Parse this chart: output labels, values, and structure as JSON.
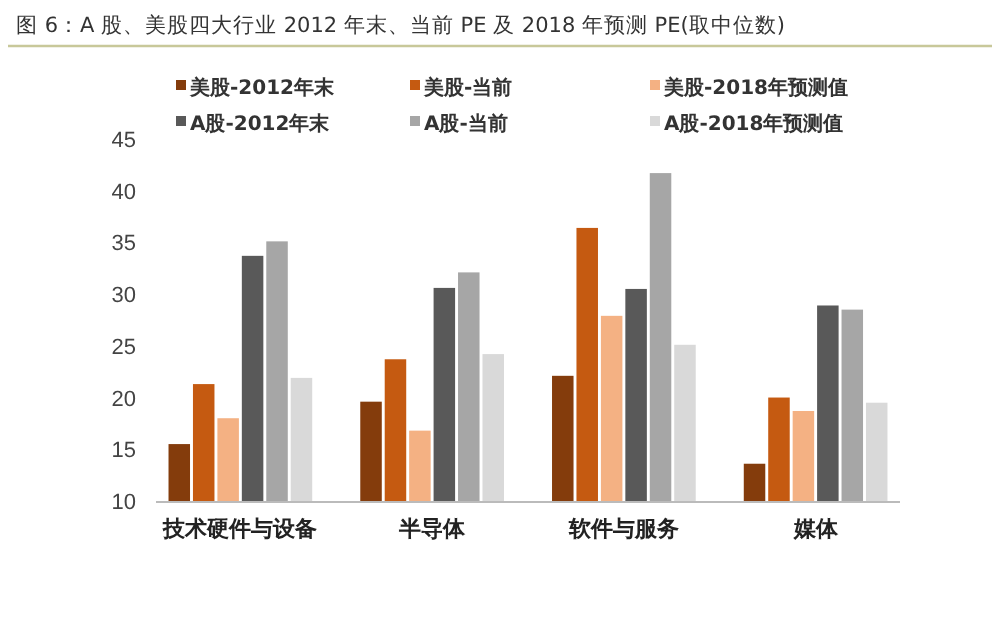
{
  "chart_data": {
    "type": "bar",
    "title": "图 6：A 股、美股四大行业 2012 年末、当前 PE 及 2018 年预测 PE(取中位数)",
    "categories": [
      "技术硬件与设备",
      "半导体",
      "软件与服务",
      "媒体"
    ],
    "series": [
      {
        "name": "美股-2012年末",
        "color": "#843c0c",
        "values": [
          15.6,
          19.7,
          22.2,
          13.7
        ]
      },
      {
        "name": "美股-当前",
        "color": "#c55a11",
        "values": [
          21.4,
          23.8,
          36.5,
          20.1
        ]
      },
      {
        "name": "美股-2018年预测值",
        "color": "#f4b183",
        "values": [
          18.1,
          16.9,
          28.0,
          18.8
        ]
      },
      {
        "name": "A股-2012年末",
        "color": "#595959",
        "values": [
          33.8,
          30.7,
          30.6,
          29.0
        ]
      },
      {
        "name": "A股-当前",
        "color": "#a6a6a6",
        "values": [
          35.2,
          32.2,
          41.8,
          28.6
        ]
      },
      {
        "name": "A股-2018年预测值",
        "color": "#d9d9d9",
        "values": [
          22.0,
          24.3,
          25.2,
          19.6
        ]
      }
    ],
    "ylim": [
      10,
      45
    ],
    "yticks": [
      10,
      15,
      20,
      25,
      30,
      35,
      40,
      45
    ],
    "grid": false,
    "legend": "top"
  }
}
